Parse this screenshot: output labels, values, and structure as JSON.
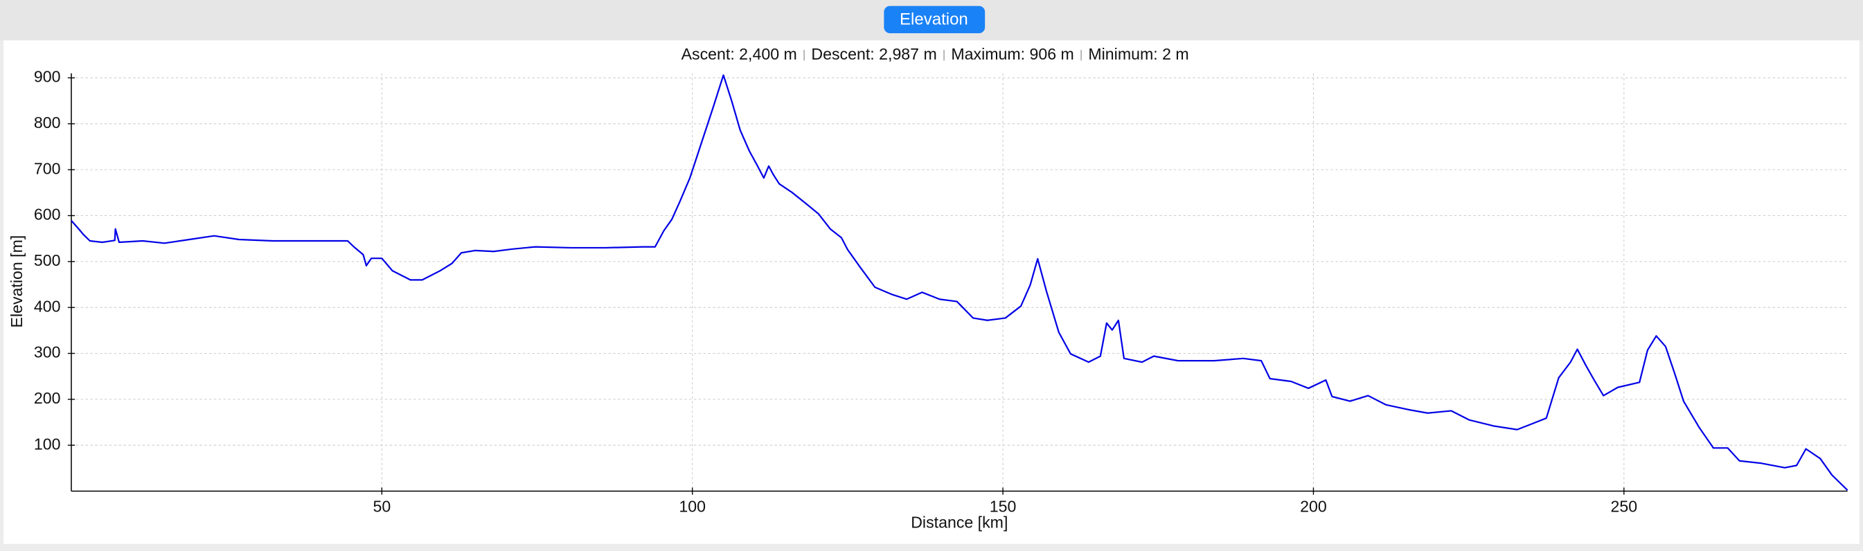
{
  "tab": {
    "label": "Elevation"
  },
  "chart_data": {
    "type": "line",
    "stats": [
      "Ascent: 2,400 m",
      "Descent: 2,987 m",
      "Maximum: 906 m",
      "Minimum: 2 m"
    ],
    "xlabel": "Distance [km]",
    "ylabel": "Elevation [m]",
    "color": "#0000e6",
    "x": [
      0,
      1,
      2,
      3,
      5,
      7,
      7.1,
      7.7,
      11.5,
      15,
      19,
      23,
      27,
      32.5,
      38,
      42,
      44.5,
      45.5,
      47,
      47.5,
      48.3,
      50,
      51.7,
      54.6,
      56.5,
      59.4,
      61.3,
      62.8,
      65,
      68,
      70.9,
      74.7,
      80.5,
      86,
      92,
      94,
      95.4,
      96.7,
      98,
      99.6,
      101.5,
      103.4,
      105,
      106.3,
      107.7,
      109.2,
      110.5,
      111.5,
      112.3,
      113,
      114,
      116,
      118.4,
      120.3,
      122.2,
      124,
      125,
      127,
      129.4,
      132.2,
      134.5,
      137,
      139.8,
      142.6,
      145.2,
      147.5,
      150.4,
      152.9,
      154.4,
      155.6,
      157,
      159,
      160.9,
      163.8,
      165.7,
      166.7,
      167.6,
      168.6,
      169.5,
      172.4,
      174.3,
      178.2,
      184,
      188.7,
      191.6,
      193,
      196.4,
      199.2,
      202,
      203,
      205.9,
      208.8,
      211.7,
      215.5,
      218.4,
      222.2,
      225.1,
      229,
      232.8,
      234.7,
      237.5,
      239.5,
      241.4,
      242.5,
      243.9,
      245.2,
      246.7,
      249,
      252.5,
      253.8,
      255.2,
      256.7,
      258.2,
      259.6,
      262.1,
      264.4,
      266.7,
      268.6,
      272,
      275.9,
      277.8,
      279.3,
      281.6,
      283.5,
      286
    ],
    "values": [
      589,
      574,
      558,
      545,
      542,
      546,
      571,
      542,
      545,
      540,
      548,
      556,
      548,
      545,
      545,
      545,
      545,
      532,
      515,
      491,
      507,
      507,
      480,
      460,
      460,
      480,
      496,
      519,
      524,
      522,
      527,
      532,
      530,
      530,
      532,
      532,
      567,
      592,
      631,
      682,
      760,
      838,
      906,
      851,
      786,
      740,
      708,
      682,
      708,
      690,
      669,
      651,
      625,
      604,
      571,
      552,
      526,
      488,
      444,
      428,
      418,
      433,
      418,
      413,
      377,
      372,
      377,
      403,
      449,
      506,
      436,
      346,
      299,
      281,
      294,
      366,
      351,
      372,
      289,
      281,
      294,
      284,
      284,
      289,
      284,
      245,
      239,
      224,
      242,
      206,
      196,
      208,
      188,
      177,
      170,
      175,
      155,
      142,
      134,
      144,
      159,
      247,
      281,
      309,
      273,
      242,
      208,
      226,
      237,
      307,
      338,
      315,
      255,
      196,
      139,
      94,
      94,
      66,
      61,
      51,
      56,
      92,
      71,
      35,
      2
    ],
    "xlim": [
      0,
      286
    ],
    "ylim": [
      0,
      910
    ],
    "xticks": [
      50,
      100,
      150,
      200,
      250
    ],
    "yticks": [
      100,
      200,
      300,
      400,
      500,
      600,
      700,
      800,
      900
    ],
    "grid": true
  }
}
